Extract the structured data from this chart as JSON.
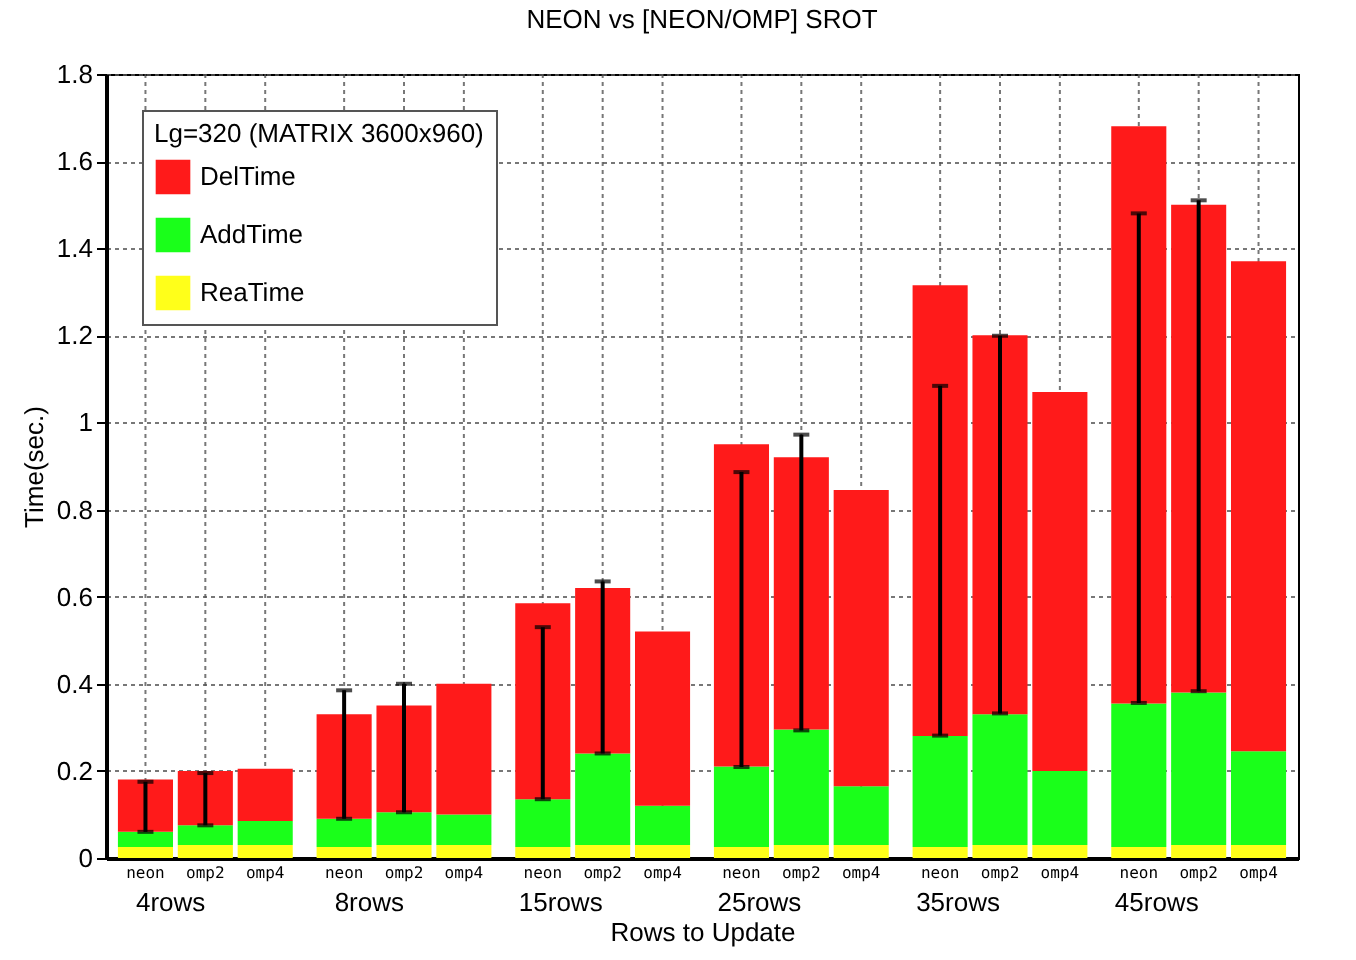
{
  "chart_data": {
    "type": "bar",
    "title": "NEON vs [NEON/OMP] SROT",
    "xlabel": "Rows to Update",
    "ylabel": "Time(sec.)",
    "legend_title": "Lg=320 (MATRIX 3600x960)",
    "categories": [
      "neon",
      "omp2",
      "omp4",
      "neon",
      "omp2",
      "omp4",
      "neon",
      "omp2",
      "omp4",
      "neon",
      "omp2",
      "omp4",
      "neon",
      "omp2",
      "omp4",
      "neon",
      "omp2",
      "omp4"
    ],
    "annotations": [
      "4rows",
      "8rows",
      "15rows",
      "25rows",
      "35rows",
      "45rows"
    ],
    "stacked": true,
    "series": [
      {
        "name": "ReaTime",
        "color": "#ffff1a",
        "values": [
          0.025,
          0.03,
          0.03,
          0.025,
          0.03,
          0.03,
          0.025,
          0.03,
          0.03,
          0.025,
          0.03,
          0.03,
          0.025,
          0.03,
          0.03,
          0.025,
          0.03,
          0.03
        ]
      },
      {
        "name": "AddTime",
        "color": "#1aff1a",
        "values": [
          0.035,
          0.045,
          0.055,
          0.065,
          0.075,
          0.07,
          0.11,
          0.21,
          0.09,
          0.185,
          0.265,
          0.135,
          0.255,
          0.3,
          0.17,
          0.33,
          0.35,
          0.215
        ]
      },
      {
        "name": "DelTime",
        "color": "#ff1a1a",
        "values": [
          0.12,
          0.125,
          0.12,
          0.24,
          0.245,
          0.3,
          0.45,
          0.38,
          0.4,
          0.74,
          0.625,
          0.68,
          1.035,
          0.87,
          0.87,
          1.325,
          1.12,
          1.125
        ],
        "errors": [
          [
            0.06,
            0.175
          ],
          [
            0.075,
            0.195
          ],
          null,
          [
            0.09,
            0.385
          ],
          [
            0.105,
            0.4
          ],
          null,
          [
            0.135,
            0.53
          ],
          [
            0.24,
            0.635
          ],
          null,
          [
            0.209,
            0.886
          ],
          [
            0.293,
            0.972
          ],
          null,
          [
            0.281,
            1.084
          ],
          [
            0.332,
            1.199
          ],
          null,
          [
            0.356,
            1.48
          ],
          [
            0.383,
            1.51
          ],
          null
        ]
      }
    ],
    "ylim": [
      0,
      1.8
    ],
    "yticks": [
      0,
      0.2,
      0.4,
      0.6,
      0.8,
      1,
      1.2,
      1.4,
      1.6,
      1.8
    ],
    "grid": true,
    "legend": "top left"
  }
}
